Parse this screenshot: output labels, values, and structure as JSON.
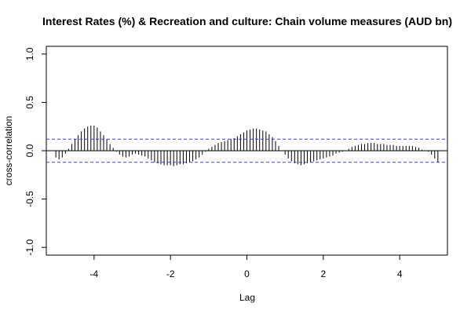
{
  "chart_data": {
    "type": "bar",
    "subtype": "cross-correlation",
    "title": "Interest Rates (%) & Recreation and culture: Chain volume measures (AUD bn)",
    "xlabel": "Lag",
    "ylabel": "cross-correlation",
    "xlim": [
      -5.25,
      5.25
    ],
    "ylim": [
      -1.08,
      1.08
    ],
    "x_ticks": [
      -4,
      -2,
      0,
      2,
      4
    ],
    "y_ticks": [
      -1.0,
      -0.5,
      0.0,
      0.5,
      1.0
    ],
    "x_tick_labels": [
      "-4",
      "-2",
      "0",
      "2",
      "4"
    ],
    "y_tick_labels": [
      "-1.0",
      "-0.5",
      "0.0",
      "0.5",
      "1.0"
    ],
    "confidence_bound": 0.12,
    "bar_color": "#000000",
    "ci_color": "#3b3bd9",
    "grid": false,
    "lag_step": 0.0833333333,
    "lags": [
      -5.0,
      -4.9167,
      -4.8333,
      -4.75,
      -4.6667,
      -4.5833,
      -4.5,
      -4.4167,
      -4.3333,
      -4.25,
      -4.1667,
      -4.0833,
      -4.0,
      -3.9167,
      -3.8333,
      -3.75,
      -3.6667,
      -3.5833,
      -3.5,
      -3.4167,
      -3.3333,
      -3.25,
      -3.1667,
      -3.0833,
      -3.0,
      -2.9167,
      -2.8333,
      -2.75,
      -2.6667,
      -2.5833,
      -2.5,
      -2.4167,
      -2.3333,
      -2.25,
      -2.1667,
      -2.0833,
      -2.0,
      -1.9167,
      -1.8333,
      -1.75,
      -1.6667,
      -1.5833,
      -1.5,
      -1.4167,
      -1.3333,
      -1.25,
      -1.1667,
      -1.0833,
      -1.0,
      -0.9167,
      -0.8333,
      -0.75,
      -0.6667,
      -0.5833,
      -0.5,
      -0.4167,
      -0.3333,
      -0.25,
      -0.1667,
      -0.0833,
      0.0,
      0.0833,
      0.1667,
      0.25,
      0.3333,
      0.4167,
      0.5,
      0.5833,
      0.6667,
      0.75,
      0.8333,
      0.9167,
      1.0,
      1.0833,
      1.1667,
      1.25,
      1.3333,
      1.4167,
      1.5,
      1.5833,
      1.6667,
      1.75,
      1.8333,
      1.9167,
      2.0,
      2.0833,
      2.1667,
      2.25,
      2.3333,
      2.4167,
      2.5,
      2.5833,
      2.6667,
      2.75,
      2.8333,
      2.9167,
      3.0,
      3.0833,
      3.1667,
      3.25,
      3.3333,
      3.4167,
      3.5,
      3.5833,
      3.6667,
      3.75,
      3.8333,
      3.9167,
      4.0,
      4.0833,
      4.1667,
      4.25,
      4.3333,
      4.4167,
      4.5,
      4.5833,
      4.6667,
      4.75,
      4.8333,
      4.9167,
      5.0
    ],
    "values": [
      -0.07,
      -0.09,
      -0.07,
      -0.03,
      0.02,
      0.07,
      0.12,
      0.16,
      0.2,
      0.23,
      0.25,
      0.26,
      0.26,
      0.24,
      0.2,
      0.16,
      0.12,
      0.07,
      0.03,
      -0.01,
      -0.04,
      -0.06,
      -0.07,
      -0.06,
      -0.04,
      -0.03,
      -0.04,
      -0.05,
      -0.06,
      -0.08,
      -0.1,
      -0.12,
      -0.13,
      -0.14,
      -0.15,
      -0.15,
      -0.15,
      -0.16,
      -0.15,
      -0.14,
      -0.14,
      -0.13,
      -0.12,
      -0.11,
      -0.09,
      -0.07,
      -0.04,
      -0.01,
      0.02,
      0.04,
      0.06,
      0.08,
      0.09,
      0.1,
      0.11,
      0.12,
      0.13,
      0.15,
      0.17,
      0.19,
      0.21,
      0.22,
      0.23,
      0.23,
      0.22,
      0.21,
      0.2,
      0.17,
      0.14,
      0.1,
      0.05,
      0.0,
      -0.04,
      -0.08,
      -0.11,
      -0.13,
      -0.14,
      -0.15,
      -0.14,
      -0.13,
      -0.12,
      -0.11,
      -0.1,
      -0.09,
      -0.08,
      -0.07,
      -0.06,
      -0.05,
      -0.03,
      -0.02,
      -0.01,
      0.0,
      0.02,
      0.04,
      0.05,
      0.06,
      0.07,
      0.07,
      0.08,
      0.08,
      0.08,
      0.07,
      0.07,
      0.07,
      0.06,
      0.06,
      0.06,
      0.05,
      0.05,
      0.05,
      0.05,
      0.05,
      0.05,
      0.04,
      0.03,
      0.01,
      0.0,
      -0.01,
      -0.04,
      -0.08,
      -0.12
    ]
  }
}
